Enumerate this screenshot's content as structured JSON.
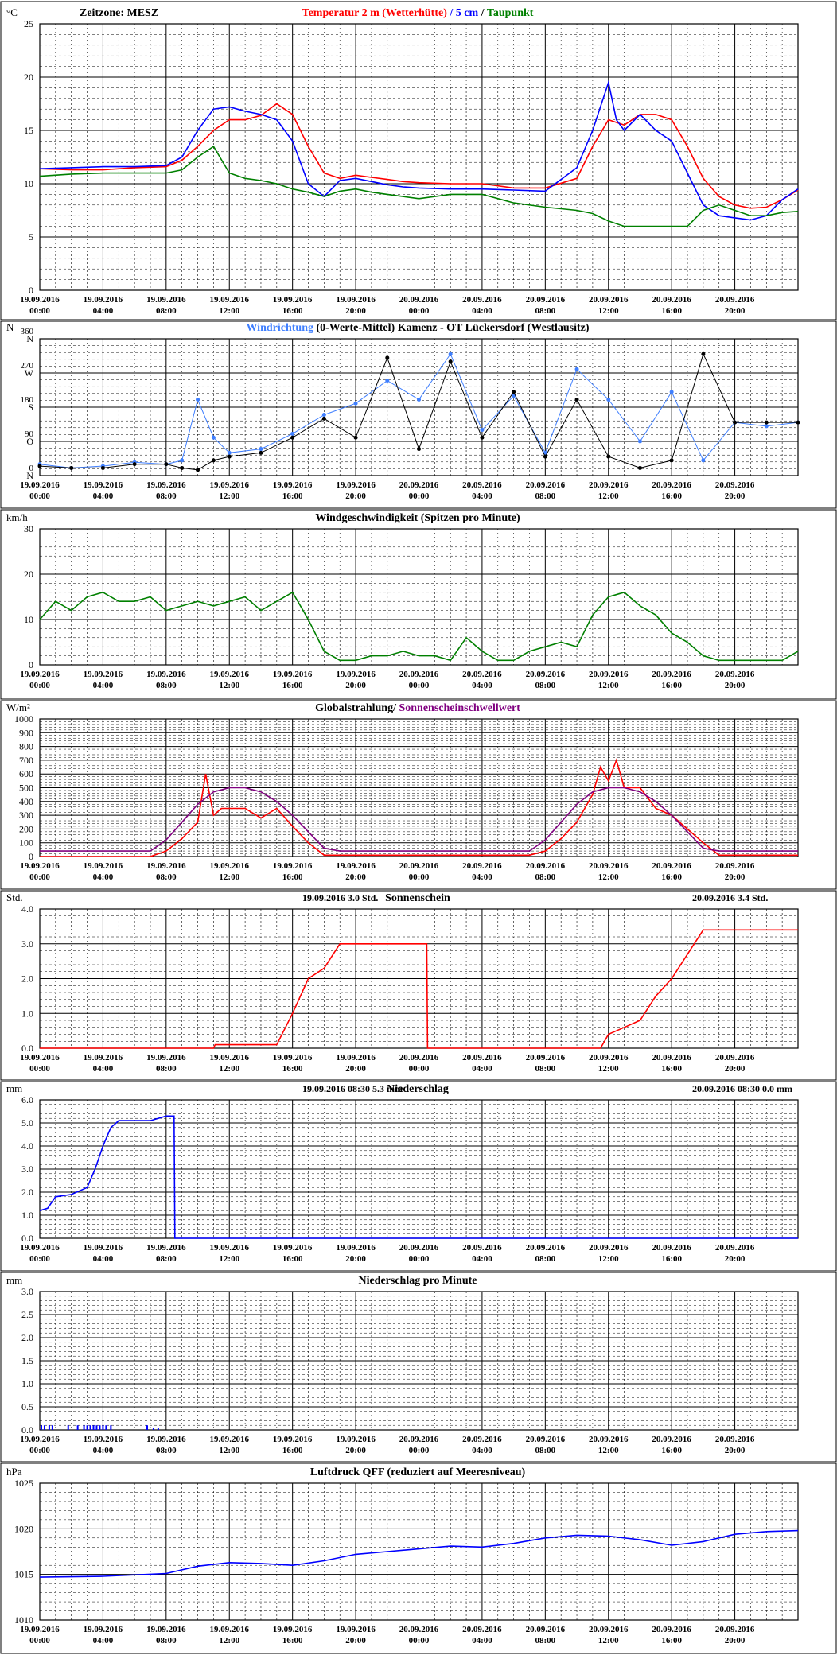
{
  "x_ticks": [
    [
      "19.09.2016",
      "00:00"
    ],
    [
      "19.09.2016",
      "04:00"
    ],
    [
      "19.09.2016",
      "08:00"
    ],
    [
      "19.09.2016",
      "12:00"
    ],
    [
      "19.09.2016",
      "16:00"
    ],
    [
      "19.09.2016",
      "20:00"
    ],
    [
      "20.09.2016",
      "00:00"
    ],
    [
      "20.09.2016",
      "04:00"
    ],
    [
      "20.09.2016",
      "08:00"
    ],
    [
      "20.09.2016",
      "12:00"
    ],
    [
      "20.09.2016",
      "16:00"
    ],
    [
      "20.09.2016",
      "20:00"
    ]
  ],
  "colors": {
    "red": "#ff0000",
    "blue": "#0000ff",
    "green": "#008000",
    "lightblue": "#3f7fff",
    "purple": "#800080",
    "grid": "#000000"
  },
  "chart_data": [
    {
      "id": "temp",
      "type": "line",
      "unit": "°C",
      "title_left": "Zeitzone: MESZ",
      "title_parts": [
        {
          "text": "Temperatur 2 m (Wetterhütte)",
          "color": "#ff0000"
        },
        {
          "text": " / ",
          "color": "#0000ff"
        },
        {
          "text": "5 cm",
          "color": "#0000ff"
        },
        {
          "text": " / ",
          "color": "#000000"
        },
        {
          "text": "Taupunkt",
          "color": "#008000"
        }
      ],
      "ylim": [
        0,
        25
      ],
      "yticks": [
        "0",
        "5",
        "10",
        "15",
        "20",
        "25"
      ],
      "series": [
        {
          "name": "Temperatur 2 m (Wetterhütte)",
          "color": "#ff0000",
          "x": [
            0,
            2,
            4,
            6,
            8,
            9,
            10,
            11,
            12,
            13,
            14,
            15,
            16,
            17,
            18,
            19,
            20,
            21,
            22,
            23,
            24,
            26,
            28,
            30,
            32,
            34,
            35,
            36,
            37,
            38,
            39,
            40,
            41,
            42,
            43,
            44,
            45,
            46,
            47,
            48
          ],
          "y": [
            11.4,
            11.3,
            11.3,
            11.5,
            11.6,
            12.2,
            13.5,
            15.0,
            16.0,
            16.0,
            16.4,
            17.5,
            16.5,
            13.5,
            11.0,
            10.5,
            10.8,
            10.6,
            10.4,
            10.2,
            10.1,
            10.0,
            10.0,
            9.6,
            9.6,
            10.5,
            13.5,
            16.0,
            15.5,
            16.5,
            16.5,
            16.0,
            13.5,
            10.5,
            8.8,
            8.0,
            7.7,
            7.8,
            8.5,
            9.4
          ]
        },
        {
          "name": "5 cm",
          "color": "#0000ff",
          "x": [
            0,
            2,
            4,
            6,
            8,
            9,
            10,
            11,
            12,
            13,
            14,
            15,
            16,
            17,
            18,
            19,
            20,
            21,
            22,
            23,
            24,
            26,
            28,
            30,
            32,
            34,
            35,
            36,
            36.5,
            37,
            38,
            39,
            40,
            41,
            42,
            43,
            44,
            45,
            46,
            47,
            48
          ],
          "y": [
            11.4,
            11.5,
            11.6,
            11.6,
            11.7,
            12.5,
            15.0,
            17.0,
            17.2,
            16.8,
            16.5,
            16.0,
            14.0,
            10.0,
            8.8,
            10.3,
            10.5,
            10.2,
            9.9,
            9.7,
            9.6,
            9.5,
            9.5,
            9.4,
            9.3,
            11.5,
            15.0,
            19.5,
            16.0,
            15.0,
            16.5,
            15.0,
            14.0,
            11.0,
            8.0,
            7.0,
            6.8,
            6.6,
            7.0,
            8.5,
            9.5
          ]
        },
        {
          "name": "Taupunkt",
          "color": "#008000",
          "x": [
            0,
            2,
            4,
            6,
            8,
            9,
            10,
            11,
            12,
            13,
            14,
            15,
            16,
            17,
            18,
            19,
            20,
            21,
            22,
            23,
            24,
            26,
            28,
            30,
            32,
            34,
            35,
            36,
            37,
            38,
            39,
            40,
            41,
            42,
            43,
            44,
            45,
            46,
            47,
            48
          ],
          "y": [
            10.7,
            10.9,
            11.0,
            11.0,
            11.0,
            11.3,
            12.5,
            13.5,
            11.0,
            10.5,
            10.3,
            10.0,
            9.5,
            9.2,
            8.8,
            9.3,
            9.5,
            9.2,
            9.0,
            8.8,
            8.6,
            9.0,
            9.0,
            8.2,
            7.8,
            7.5,
            7.2,
            6.5,
            6.0,
            6.0,
            6.0,
            6.0,
            6.0,
            7.5,
            8.0,
            7.5,
            7.0,
            7.0,
            7.3,
            7.4
          ]
        }
      ]
    },
    {
      "id": "wind_dir",
      "type": "scatter",
      "unit": "N",
      "title_parts": [
        {
          "text": "Windrichtung",
          "color": "#3f7fff"
        },
        {
          "text": " (0-Werte-Mittel)",
          "color": "#000000"
        },
        {
          "text": "          Kamenz - OT Lückersdorf (Westlausitz)",
          "color": "#000000"
        }
      ],
      "ylim": [
        0,
        360
      ],
      "yticks": [
        "N",
        "O",
        "S",
        "W",
        "N"
      ],
      "ytick_values": [
        0,
        90,
        180,
        270,
        360
      ],
      "ytick_numbers": [
        "0",
        "90",
        "180",
        "270",
        "360"
      ],
      "series": [
        {
          "name": "Windrichtung",
          "color": "#3f7fff",
          "x": [
            0,
            2,
            4,
            6,
            8,
            9,
            10,
            11,
            12,
            14,
            16,
            18,
            20,
            22,
            24,
            26,
            28,
            30,
            32,
            34,
            36,
            38,
            40,
            42,
            44,
            46,
            48
          ],
          "y": [
            30,
            20,
            25,
            35,
            30,
            40,
            200,
            100,
            60,
            70,
            110,
            160,
            190,
            250,
            200,
            320,
            120,
            210,
            60,
            280,
            200,
            90,
            220,
            40,
            140,
            130,
            140
          ]
        },
        {
          "name": "0-Werte-Mittel",
          "color": "#000000",
          "x": [
            0,
            2,
            4,
            6,
            8,
            9,
            10,
            11,
            12,
            14,
            16,
            18,
            20,
            22,
            24,
            26,
            28,
            30,
            32,
            34,
            36,
            38,
            40,
            42,
            44,
            46,
            48
          ],
          "y": [
            25,
            20,
            20,
            30,
            30,
            20,
            15,
            40,
            50,
            60,
            100,
            150,
            100,
            310,
            70,
            300,
            100,
            220,
            50,
            200,
            50,
            20,
            40,
            320,
            140,
            140,
            140
          ]
        }
      ]
    },
    {
      "id": "wind_speed",
      "type": "line",
      "unit": "km/h",
      "title_parts": [
        {
          "text": "Windgeschwindigkeit (Spitzen pro Minute)",
          "color": "#000000"
        }
      ],
      "ylim": [
        0,
        30
      ],
      "yticks": [
        "0",
        "10",
        "20",
        "30"
      ],
      "series": [
        {
          "name": "Windgeschwindigkeit",
          "color": "#008000",
          "x": [
            0,
            1,
            2,
            3,
            4,
            5,
            6,
            7,
            8,
            9,
            10,
            11,
            12,
            13,
            14,
            15,
            16,
            17,
            18,
            19,
            20,
            21,
            22,
            23,
            24,
            25,
            26,
            27,
            28,
            29,
            30,
            31,
            32,
            33,
            34,
            35,
            36,
            37,
            38,
            39,
            40,
            41,
            42,
            43,
            44,
            45,
            46,
            47,
            48
          ],
          "y": [
            10,
            14,
            12,
            15,
            16,
            14,
            14,
            15,
            12,
            13,
            14,
            13,
            14,
            15,
            12,
            14,
            16,
            10,
            3,
            1,
            1,
            2,
            2,
            3,
            2,
            2,
            1,
            6,
            3,
            1,
            1,
            3,
            4,
            5,
            4,
            11,
            15,
            16,
            13,
            11,
            7,
            5,
            2,
            1,
            1,
            1,
            1,
            1,
            3
          ]
        }
      ]
    },
    {
      "id": "global_rad",
      "type": "line",
      "unit": "W/m²",
      "title_parts": [
        {
          "text": "Globalstrahlung/ ",
          "color": "#000000"
        },
        {
          "text": "Sonnenscheinschwellwert",
          "color": "#800080"
        }
      ],
      "ylim": [
        0,
        1000
      ],
      "yticks": [
        "0",
        "100",
        "200",
        "300",
        "400",
        "500",
        "600",
        "700",
        "800",
        "900",
        "1000"
      ],
      "series": [
        {
          "name": "Globalstrahlung",
          "color": "#ff0000",
          "x": [
            0,
            7,
            8,
            9,
            10,
            10.5,
            11,
            11.5,
            12,
            13,
            14,
            15,
            16,
            17,
            18,
            24,
            31,
            32,
            33,
            34,
            35,
            35.5,
            36,
            36.5,
            37,
            38,
            39,
            40,
            41,
            42,
            43,
            48
          ],
          "y": [
            0,
            0,
            40,
            130,
            250,
            600,
            300,
            350,
            350,
            350,
            280,
            350,
            220,
            100,
            10,
            10,
            10,
            40,
            130,
            250,
            450,
            650,
            550,
            700,
            500,
            500,
            350,
            300,
            200,
            100,
            10,
            10
          ]
        },
        {
          "name": "Sonnenscheinschwellwert",
          "color": "#800080",
          "x": [
            0,
            7,
            8,
            9,
            10,
            11,
            12,
            13,
            14,
            15,
            16,
            17,
            18,
            19,
            24,
            31,
            32,
            33,
            34,
            35,
            36,
            37,
            38,
            39,
            40,
            41,
            42,
            43,
            44,
            48
          ],
          "y": [
            40,
            40,
            120,
            250,
            380,
            470,
            500,
            500,
            470,
            400,
            300,
            180,
            60,
            40,
            40,
            40,
            120,
            250,
            380,
            470,
            500,
            500,
            470,
            400,
            300,
            180,
            60,
            40,
            40,
            40
          ]
        }
      ]
    },
    {
      "id": "sunshine",
      "type": "line",
      "unit": "Std.",
      "title_parts": [
        {
          "text": "Sonnenschein",
          "color": "#000000"
        }
      ],
      "annotations": [
        {
          "date": "19.09.2016",
          "value": "3.0",
          "unit": "Std."
        },
        {
          "date": "20.09.2016",
          "value": "3.4",
          "unit": "Std."
        }
      ],
      "ylim": [
        0,
        4
      ],
      "yticks": [
        "0.0",
        "1.0",
        "2.0",
        "3.0",
        "4.0"
      ],
      "series": [
        {
          "name": "Sonnenschein",
          "color": "#ff0000",
          "x": [
            0,
            11,
            11.1,
            15,
            16,
            17,
            18,
            19,
            24.5,
            24.55,
            35.5,
            36,
            37,
            38,
            39,
            40,
            41,
            42,
            43,
            48
          ],
          "y": [
            0,
            0,
            0.1,
            0.1,
            1.0,
            2.0,
            2.3,
            3.0,
            3.0,
            0,
            0,
            0.4,
            0.6,
            0.8,
            1.5,
            2.0,
            2.7,
            3.4,
            3.4,
            3.4
          ]
        }
      ]
    },
    {
      "id": "precip",
      "type": "line",
      "unit": "mm",
      "title_parts": [
        {
          "text": "Niederschlag",
          "color": "#000000"
        }
      ],
      "annotations": [
        {
          "date": "19.09.2016 08:30",
          "value": "5.3",
          "unit": "mm"
        },
        {
          "date": "20.09.2016 08:30",
          "value": "0.0",
          "unit": "mm"
        }
      ],
      "ylim": [
        0,
        6
      ],
      "yticks": [
        "0.0",
        "1.0",
        "2.0",
        "3.0",
        "4.0",
        "5.0",
        "6.0"
      ],
      "series": [
        {
          "name": "Niederschlag",
          "color": "#0000ff",
          "x": [
            0,
            0.5,
            1,
            2,
            3,
            3.5,
            4,
            4.5,
            5,
            5.5,
            6,
            7,
            8,
            8.5,
            8.55,
            48
          ],
          "y": [
            1.2,
            1.3,
            1.8,
            1.9,
            2.2,
            3.0,
            4.0,
            4.8,
            5.1,
            5.1,
            5.1,
            5.1,
            5.3,
            5.3,
            0,
            0
          ]
        }
      ]
    },
    {
      "id": "precip_min",
      "type": "bar",
      "unit": "mm",
      "title_parts": [
        {
          "text": "Niederschlag pro Minute",
          "color": "#000000"
        }
      ],
      "ylim": [
        0,
        3
      ],
      "yticks": [
        "0.0",
        "0.5",
        "1.0",
        "1.5",
        "2.0",
        "2.5",
        "3.0"
      ],
      "series": [
        {
          "name": "Niederschlag pro Minute",
          "color": "#0000ff",
          "x": [
            0.1,
            0.3,
            0.6,
            0.8,
            1.8,
            2.4,
            2.8,
            3.0,
            3.2,
            3.4,
            3.6,
            3.8,
            4.0,
            4.2,
            4.5,
            6.8,
            7.2,
            7.5
          ],
          "y": [
            0.1,
            0.1,
            0.1,
            0.1,
            0.1,
            0.1,
            0.1,
            0.1,
            0.1,
            0.1,
            0.1,
            0.1,
            0.1,
            0.1,
            0.1,
            0.1,
            0.05,
            0.05
          ]
        }
      ]
    },
    {
      "id": "pressure",
      "type": "line",
      "unit": "hPa",
      "title_parts": [
        {
          "text": "Luftdruck QFF (reduziert auf Meeresniveau)",
          "color": "#000000"
        }
      ],
      "ylim": [
        1010,
        1025
      ],
      "yticks": [
        "1010",
        "1015",
        "1020",
        "1025"
      ],
      "series": [
        {
          "name": "Luftdruck QFF",
          "color": "#0000ff",
          "x": [
            0,
            4,
            8,
            10,
            12,
            14,
            16,
            18,
            20,
            22,
            24,
            26,
            28,
            30,
            32,
            34,
            36,
            38,
            40,
            42,
            44,
            46,
            48
          ],
          "y": [
            1014.7,
            1014.8,
            1015.1,
            1015.9,
            1016.3,
            1016.2,
            1016.0,
            1016.5,
            1017.2,
            1017.5,
            1017.8,
            1018.1,
            1018.0,
            1018.4,
            1019.0,
            1019.3,
            1019.2,
            1018.8,
            1018.2,
            1018.6,
            1019.4,
            1019.7,
            1019.8
          ]
        }
      ]
    }
  ]
}
